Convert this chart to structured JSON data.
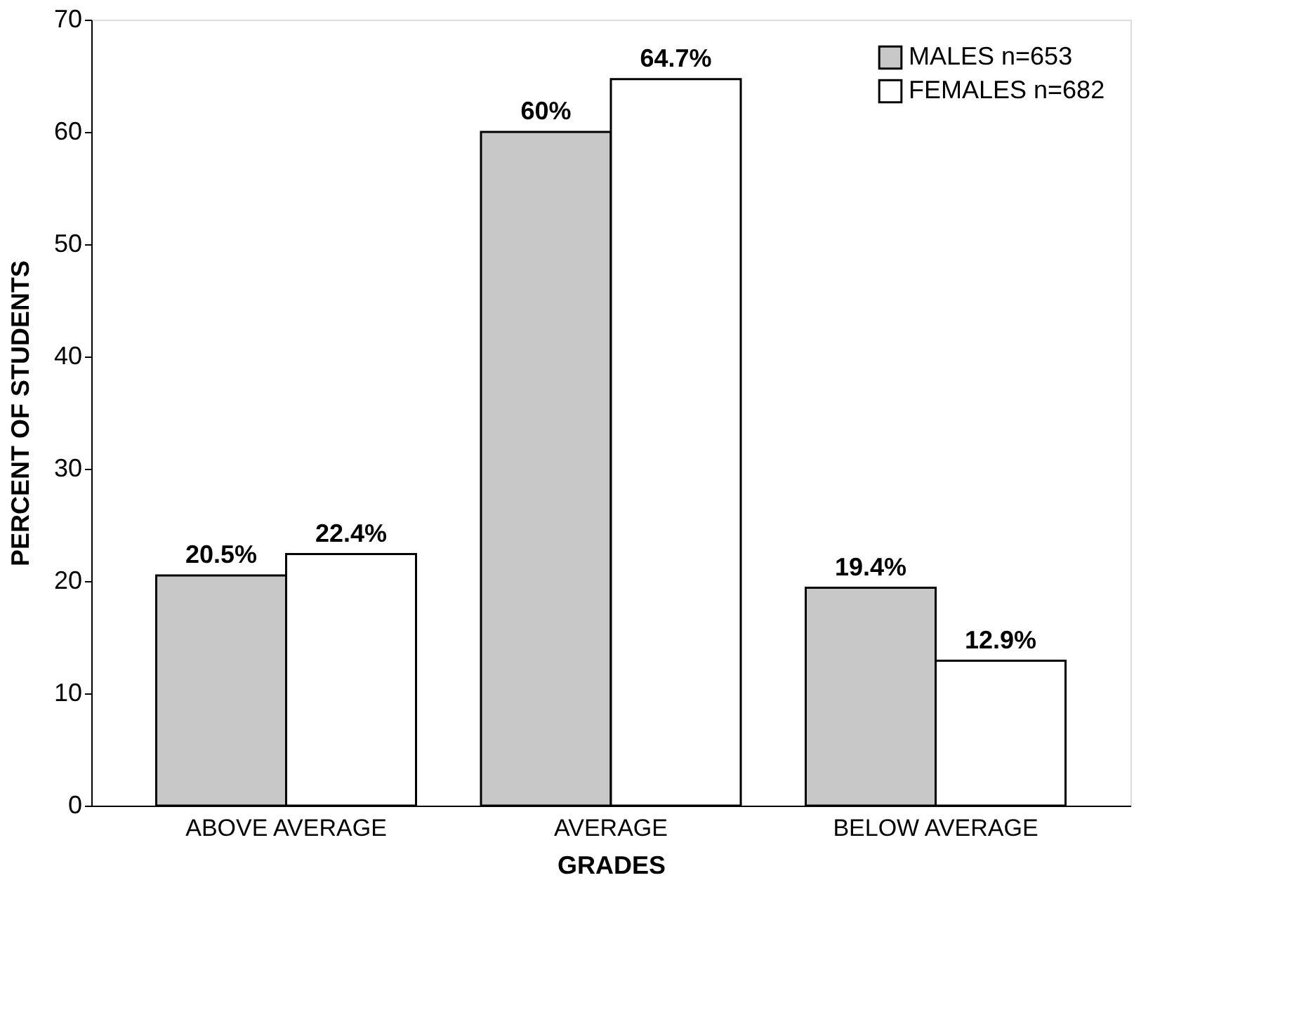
{
  "chart_data": {
    "type": "bar",
    "xlabel": "GRADES",
    "ylabel": "PERCENT OF STUDENTS",
    "categories": [
      "ABOVE AVERAGE",
      "AVERAGE",
      "BELOW AVERAGE"
    ],
    "series": [
      {
        "name": "MALES n=653",
        "color": "#c8c8c8",
        "values": [
          20.5,
          60,
          19.4
        ],
        "value_labels": [
          "20.5%",
          "60%",
          "19.4%"
        ]
      },
      {
        "name": "FEMALES n=682",
        "color": "#ffffff",
        "values": [
          22.4,
          64.7,
          12.9
        ],
        "value_labels": [
          "22.4%",
          "64.7%",
          "12.9%"
        ]
      }
    ],
    "ylim": [
      0,
      70
    ],
    "yticks": [
      0,
      10,
      20,
      30,
      40,
      50,
      60,
      70
    ],
    "grid": false,
    "legend": "top right"
  }
}
